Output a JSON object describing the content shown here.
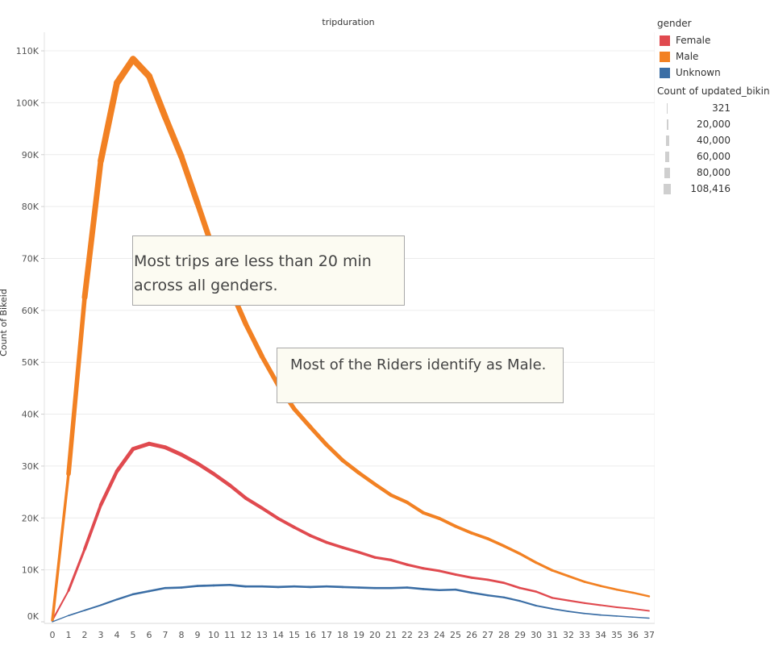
{
  "chart_data": {
    "type": "line",
    "title": "tripduration",
    "xlabel": "",
    "ylabel": "Count of Bikeid",
    "x": [
      0,
      1,
      2,
      3,
      4,
      5,
      6,
      7,
      8,
      9,
      10,
      11,
      12,
      13,
      14,
      15,
      16,
      17,
      18,
      19,
      20,
      21,
      22,
      23,
      24,
      25,
      26,
      27,
      28,
      29,
      30,
      31,
      32,
      33,
      34,
      35,
      36,
      37
    ],
    "x_tick_labels": [
      "0",
      "1",
      "2",
      "3",
      "4",
      "5",
      "6",
      "7",
      "8",
      "9",
      "10",
      "11",
      "12",
      "13",
      "14",
      "15",
      "16",
      "17",
      "18",
      "19",
      "20",
      "21",
      "22",
      "23",
      "24",
      "25",
      "26",
      "27",
      "28",
      "29",
      "30",
      "31",
      "32",
      "33",
      "34",
      "35",
      "36",
      "37"
    ],
    "ylim": [
      0,
      115000
    ],
    "y_ticks": [
      0,
      10000,
      20000,
      30000,
      40000,
      50000,
      60000,
      70000,
      80000,
      90000,
      100000,
      110000
    ],
    "y_tick_labels": [
      "0K",
      "10K",
      "20K",
      "30K",
      "40K",
      "50K",
      "60K",
      "70K",
      "80K",
      "90K",
      "100K",
      "110K"
    ],
    "grid": "horizontal",
    "legend_position": "right",
    "series": [
      {
        "name": "Female",
        "color": "#e04a4f",
        "values": [
          300,
          6000,
          14000,
          22500,
          29000,
          33300,
          34300,
          33600,
          32200,
          30500,
          28500,
          26300,
          23800,
          21900,
          19900,
          18200,
          16600,
          15300,
          14300,
          13400,
          12400,
          11900,
          11000,
          10300,
          9800,
          9100,
          8500,
          8100,
          7500,
          6500,
          5800,
          4600,
          4100,
          3600,
          3200,
          2800,
          2500,
          2100
        ]
      },
      {
        "name": "Male",
        "color": "#f28123",
        "values": [
          300,
          28500,
          62500,
          88800,
          103800,
          108400,
          105100,
          97200,
          89600,
          80600,
          71400,
          64400,
          57300,
          51100,
          45600,
          41000,
          37500,
          34100,
          31100,
          28700,
          26500,
          24400,
          23000,
          21000,
          19900,
          18400,
          17100,
          16000,
          14600,
          13100,
          11400,
          9900,
          8800,
          7700,
          6900,
          6200,
          5600,
          4900
        ]
      },
      {
        "name": "Unknown",
        "color": "#3b6ea5",
        "values": [
          0,
          1200,
          2200,
          3200,
          4300,
          5300,
          5900,
          6500,
          6600,
          6900,
          7000,
          7100,
          6800,
          6800,
          6700,
          6800,
          6700,
          6800,
          6700,
          6600,
          6500,
          6500,
          6600,
          6300,
          6100,
          6200,
          5600,
          5100,
          4700,
          4000,
          3100,
          2500,
          2000,
          1600,
          1300,
          1100,
          900,
          700
        ]
      }
    ],
    "size_legend": {
      "title": "Count of updated_biking",
      "values": [
        "321",
        "20,000",
        "40,000",
        "60,000",
        "80,000",
        "108,416"
      ]
    }
  },
  "legend": {
    "title": "gender",
    "items": [
      {
        "label": "Female",
        "color": "#e04a4f"
      },
      {
        "label": "Male",
        "color": "#f28123"
      },
      {
        "label": "Unknown",
        "color": "#3b6ea5"
      }
    ]
  },
  "annotations": [
    "Most trips are less than 20 min across all genders.",
    "Most of the Riders identify as Male."
  ]
}
